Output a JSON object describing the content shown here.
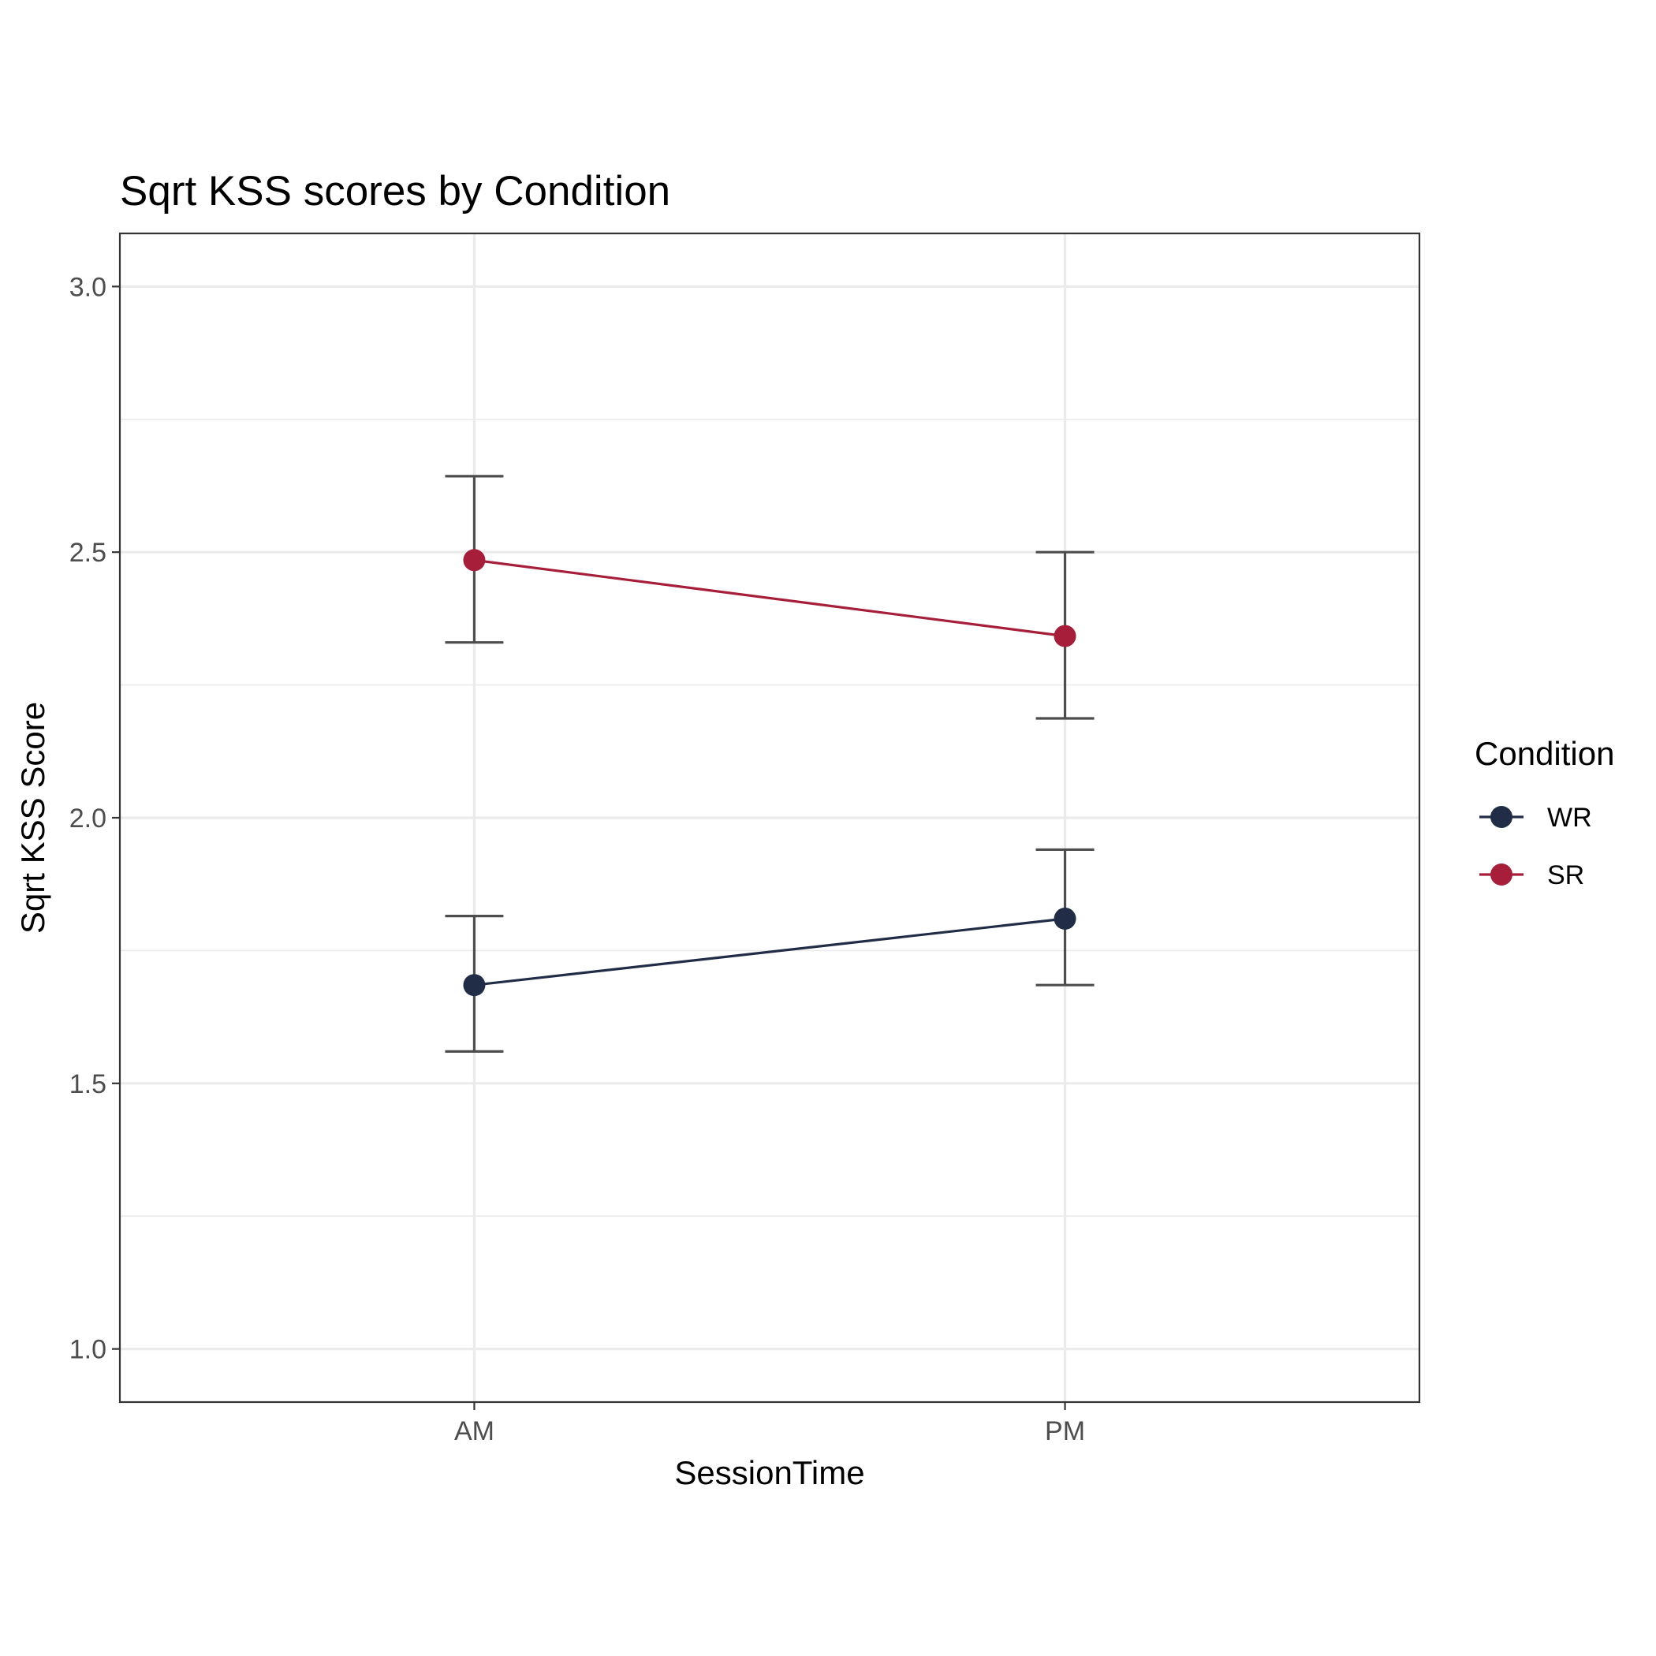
{
  "chart_data": {
    "type": "line",
    "title": "Sqrt KSS scores by Condition",
    "xlabel": "SessionTime",
    "ylabel": "Sqrt KSS Score",
    "categories": [
      "AM",
      "PM"
    ],
    "ylim": [
      0.9,
      3.1
    ],
    "yticks": [
      1.0,
      1.5,
      2.0,
      2.5,
      3.0
    ],
    "ytick_labels": [
      "1.0",
      "1.5",
      "2.0",
      "2.5",
      "3.0"
    ],
    "grid": true,
    "legend": {
      "title": "Condition",
      "position": "right"
    },
    "series": [
      {
        "name": "WR",
        "color": "#212d47",
        "values": [
          1.685,
          1.81
        ],
        "lower": [
          1.56,
          1.685
        ],
        "upper": [
          1.815,
          1.94
        ]
      },
      {
        "name": "SR",
        "color": "#a61e3a",
        "values": [
          2.485,
          2.342
        ],
        "lower": [
          2.33,
          2.187
        ],
        "upper": [
          2.643,
          2.5
        ]
      }
    ]
  }
}
